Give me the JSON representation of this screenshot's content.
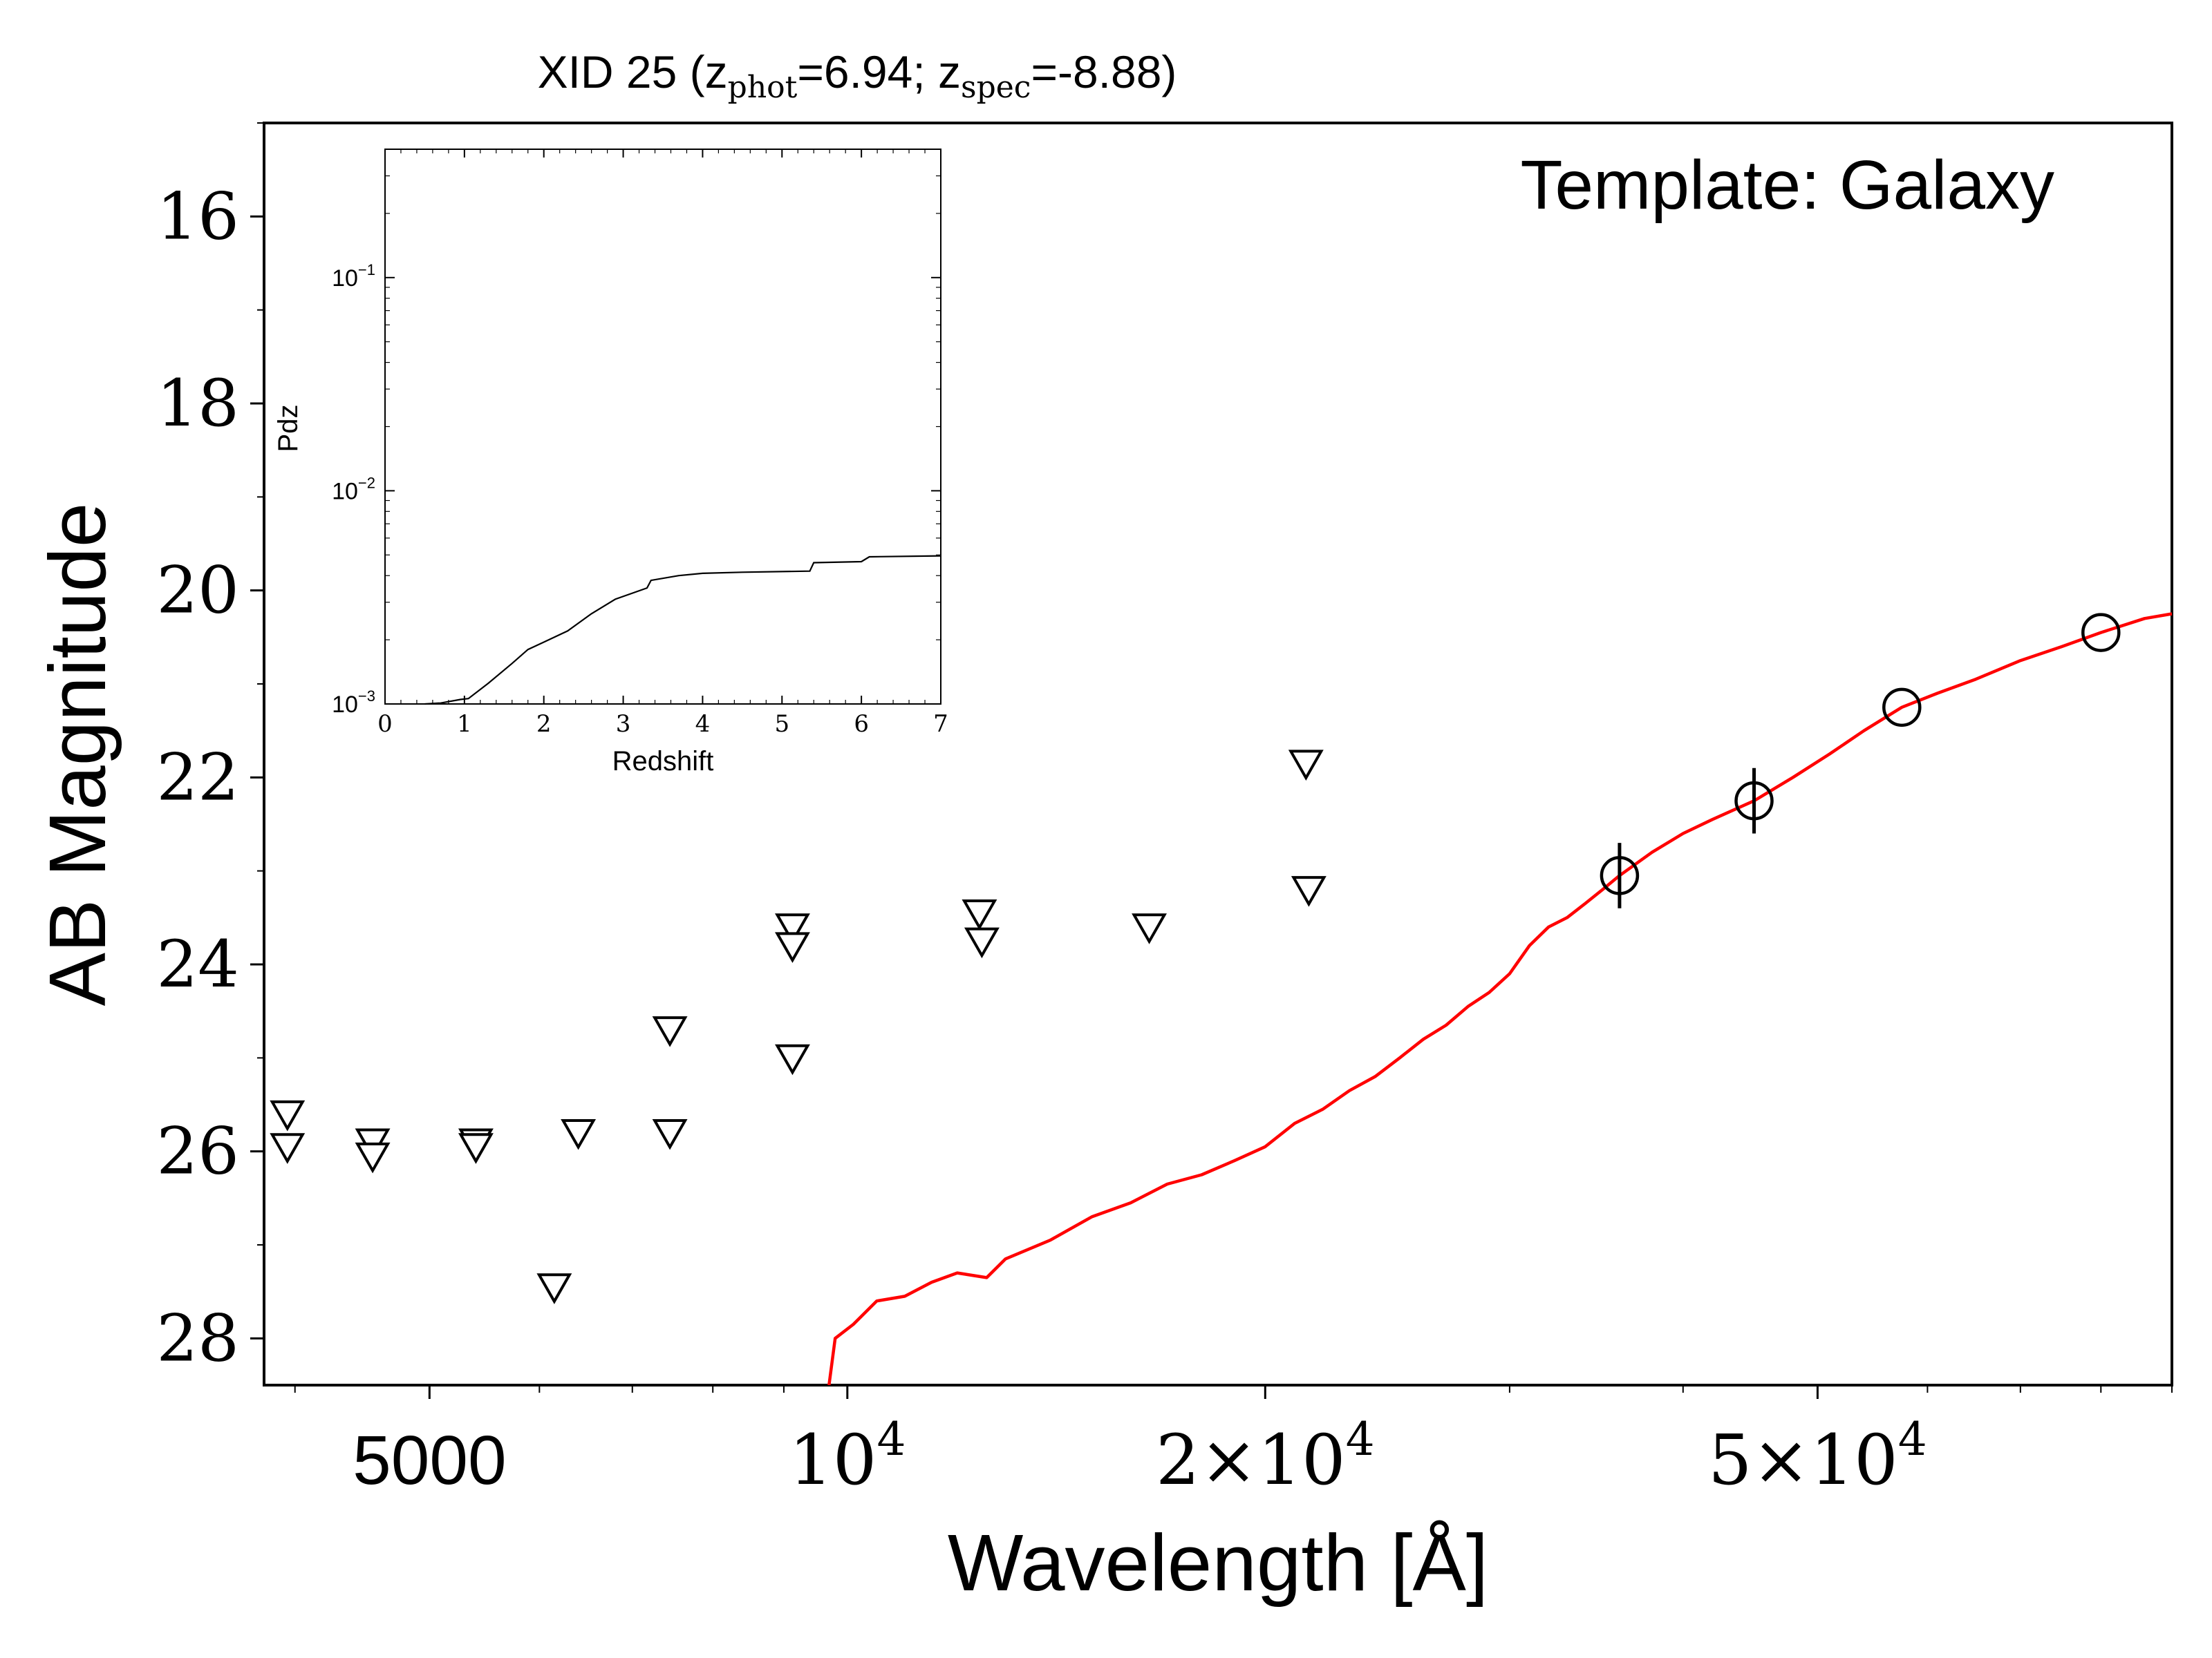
{
  "title": {
    "prefix": "XID 25 (z",
    "phot_sub": "phot",
    "phot_value": "=6.94; z",
    "spec_sub": "spec",
    "spec_value": "=-8.88)"
  },
  "annotation": "Template: Galaxy",
  "chart_data": [
    {
      "type": "scatter",
      "title": "XID 25 (zphot=6.94; zspec=-8.88)",
      "xlabel": "Wavelength [Å]",
      "ylabel": "AB Magnitude",
      "x_scale": "log",
      "xlim": [
        3800,
        90000
      ],
      "ylim": [
        28.5,
        15
      ],
      "y_inverted": true,
      "grid": false,
      "x_ticks": [
        {
          "value": 5000,
          "label": "5000"
        },
        {
          "value": 10000,
          "label": "10^4",
          "base": "10",
          "exp": "4"
        },
        {
          "value": 20000,
          "label": "2×10^4",
          "base": "2×10",
          "exp": "4"
        },
        {
          "value": 50000,
          "label": "5×10^4",
          "base": "5×10",
          "exp": "4"
        }
      ],
      "y_ticks": [
        16,
        18,
        20,
        22,
        24,
        26,
        28
      ],
      "series": [
        {
          "marker": "triangle-down-open",
          "color": "#000000",
          "role": "upper limits",
          "points": [
            [
              3950,
              25.6
            ],
            [
              3950,
              25.95
            ],
            [
              4550,
              25.9
            ],
            [
              4550,
              26.05
            ],
            [
              5400,
              25.9
            ],
            [
              5400,
              25.95
            ],
            [
              6150,
              27.45
            ],
            [
              6400,
              25.8
            ],
            [
              7450,
              24.7
            ],
            [
              7450,
              25.8
            ],
            [
              9130,
              23.6
            ],
            [
              9130,
              23.8
            ],
            [
              9130,
              25.0
            ],
            [
              12450,
              23.45
            ],
            [
              12500,
              23.75
            ],
            [
              16500,
              23.6
            ],
            [
              21400,
              21.85
            ],
            [
              21500,
              23.2
            ]
          ]
        },
        {
          "marker": "circle-open",
          "color": "#000000",
          "role": "detections",
          "points": [
            {
              "x": 36000,
              "y": 23.05,
              "yerr": 0.35
            },
            {
              "x": 45000,
              "y": 22.25,
              "yerr": 0.35
            },
            {
              "x": 57500,
              "y": 21.25,
              "yerr": 0
            },
            {
              "x": 80000,
              "y": 20.45,
              "yerr": 0
            }
          ]
        },
        {
          "type": "line",
          "color": "#ff0000",
          "role": "best-fit template",
          "points": [
            [
              9700,
              28.5
            ],
            [
              9800,
              28.0
            ],
            [
              10100,
              27.85
            ],
            [
              10500,
              27.6
            ],
            [
              11000,
              27.55
            ],
            [
              11500,
              27.4
            ],
            [
              12000,
              27.3
            ],
            [
              12600,
              27.35
            ],
            [
              13000,
              27.15
            ],
            [
              14000,
              26.95
            ],
            [
              15000,
              26.7
            ],
            [
              16000,
              26.55
            ],
            [
              17000,
              26.35
            ],
            [
              18000,
              26.25
            ],
            [
              19000,
              26.1
            ],
            [
              20000,
              25.95
            ],
            [
              21000,
              25.7
            ],
            [
              22000,
              25.55
            ],
            [
              23000,
              25.35
            ],
            [
              24000,
              25.2
            ],
            [
              25000,
              25.0
            ],
            [
              26000,
              24.8
            ],
            [
              27000,
              24.65
            ],
            [
              28000,
              24.45
            ],
            [
              29000,
              24.3
            ],
            [
              30000,
              24.1
            ],
            [
              31000,
              23.8
            ],
            [
              32000,
              23.6
            ],
            [
              33000,
              23.5
            ],
            [
              34000,
              23.35
            ],
            [
              35000,
              23.2
            ],
            [
              36000,
              23.05
            ],
            [
              38000,
              22.8
            ],
            [
              40000,
              22.6
            ],
            [
              42000,
              22.45
            ],
            [
              45000,
              22.25
            ],
            [
              48000,
              22.0
            ],
            [
              51000,
              21.75
            ],
            [
              54000,
              21.5
            ],
            [
              57500,
              21.25
            ],
            [
              61000,
              21.1
            ],
            [
              65000,
              20.95
            ],
            [
              70000,
              20.75
            ],
            [
              75000,
              20.6
            ],
            [
              80000,
              20.45
            ],
            [
              86000,
              20.3
            ],
            [
              90000,
              20.25
            ]
          ]
        }
      ]
    },
    {
      "type": "line",
      "role": "inset",
      "xlabel": "Redshift",
      "ylabel": "Pdz",
      "x_scale": "linear",
      "y_scale": "log",
      "xlim": [
        0,
        7
      ],
      "ylim": [
        0.001,
        0.4
      ],
      "x_ticks": [
        "0",
        "1",
        "2",
        "3",
        "4",
        "5",
        "6",
        "7"
      ],
      "y_ticks": [
        {
          "value": 0.001,
          "base": "10",
          "exp": "−3"
        },
        {
          "value": 0.01,
          "base": "10",
          "exp": "−2"
        },
        {
          "value": 0.1,
          "base": "10",
          "exp": "−1"
        }
      ],
      "color": "#000000",
      "points": [
        [
          0.5,
          0.001
        ],
        [
          0.7,
          0.00101
        ],
        [
          0.95,
          0.00105
        ],
        [
          1.05,
          0.00106
        ],
        [
          1.3,
          0.00125
        ],
        [
          1.6,
          0.00155
        ],
        [
          1.8,
          0.0018
        ],
        [
          2.0,
          0.00195
        ],
        [
          2.3,
          0.0022
        ],
        [
          2.6,
          0.00265
        ],
        [
          2.9,
          0.0031
        ],
        [
          3.3,
          0.0035
        ],
        [
          3.35,
          0.0038
        ],
        [
          3.7,
          0.004
        ],
        [
          4.0,
          0.0041
        ],
        [
          4.5,
          0.00415
        ],
        [
          5.35,
          0.0042
        ],
        [
          5.4,
          0.0046
        ],
        [
          6.0,
          0.00465
        ],
        [
          6.1,
          0.0049
        ],
        [
          7.0,
          0.00495
        ]
      ]
    }
  ]
}
